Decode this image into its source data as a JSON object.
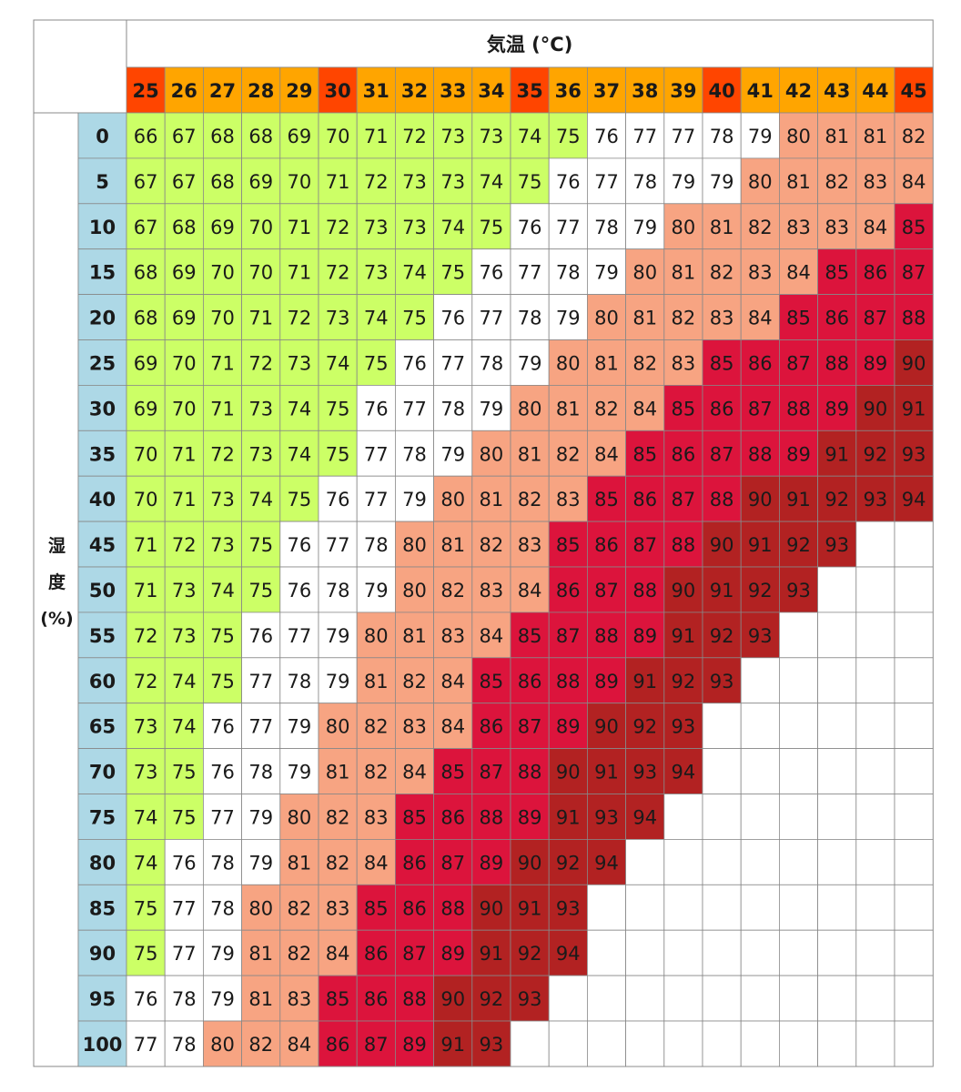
{
  "chart_data": {
    "type": "heatmap",
    "xlabel": "気温 (°C)",
    "ylabel": "湿度(%)",
    "x": [
      25,
      26,
      27,
      28,
      29,
      30,
      31,
      32,
      33,
      34,
      35,
      36,
      37,
      38,
      39,
      40,
      41,
      42,
      43,
      44,
      45
    ],
    "y": [
      0,
      5,
      10,
      15,
      20,
      25,
      30,
      35,
      40,
      45,
      50,
      55,
      60,
      65,
      70,
      75,
      80,
      85,
      90,
      95,
      100
    ],
    "values": [
      [
        66,
        67,
        68,
        68,
        69,
        70,
        71,
        72,
        73,
        73,
        74,
        75,
        76,
        77,
        77,
        78,
        79,
        80,
        81,
        81,
        82
      ],
      [
        67,
        67,
        68,
        69,
        70,
        71,
        72,
        73,
        73,
        74,
        75,
        76,
        77,
        78,
        79,
        79,
        80,
        81,
        82,
        83,
        84
      ],
      [
        67,
        68,
        69,
        70,
        71,
        72,
        73,
        73,
        74,
        75,
        76,
        77,
        78,
        79,
        80,
        81,
        82,
        83,
        83,
        84,
        85
      ],
      [
        68,
        69,
        70,
        70,
        71,
        72,
        73,
        74,
        75,
        76,
        77,
        78,
        79,
        80,
        81,
        82,
        83,
        84,
        85,
        86,
        87
      ],
      [
        68,
        69,
        70,
        71,
        72,
        73,
        74,
        75,
        76,
        77,
        78,
        79,
        80,
        81,
        82,
        83,
        84,
        85,
        86,
        87,
        88
      ],
      [
        69,
        70,
        71,
        72,
        73,
        74,
        75,
        76,
        77,
        78,
        79,
        80,
        81,
        82,
        83,
        85,
        86,
        87,
        88,
        89,
        90
      ],
      [
        69,
        70,
        71,
        73,
        74,
        75,
        76,
        77,
        78,
        79,
        80,
        81,
        82,
        84,
        85,
        86,
        87,
        88,
        89,
        90,
        91
      ],
      [
        70,
        71,
        72,
        73,
        74,
        75,
        77,
        78,
        79,
        80,
        81,
        82,
        84,
        85,
        86,
        87,
        88,
        89,
        91,
        92,
        93
      ],
      [
        70,
        71,
        73,
        74,
        75,
        76,
        77,
        79,
        80,
        81,
        82,
        83,
        85,
        86,
        87,
        88,
        90,
        91,
        92,
        93,
        94
      ],
      [
        71,
        72,
        73,
        75,
        76,
        77,
        78,
        80,
        81,
        82,
        83,
        85,
        86,
        87,
        88,
        90,
        91,
        92,
        93
      ],
      [
        71,
        73,
        74,
        75,
        76,
        78,
        79,
        80,
        82,
        83,
        84,
        86,
        87,
        88,
        90,
        91,
        92,
        93
      ],
      [
        72,
        73,
        75,
        76,
        77,
        79,
        80,
        81,
        83,
        84,
        85,
        87,
        88,
        89,
        91,
        92,
        93
      ],
      [
        72,
        74,
        75,
        77,
        78,
        79,
        81,
        82,
        84,
        85,
        86,
        88,
        89,
        91,
        92,
        93
      ],
      [
        73,
        74,
        76,
        77,
        79,
        80,
        82,
        83,
        84,
        86,
        87,
        89,
        90,
        92,
        93
      ],
      [
        73,
        75,
        76,
        78,
        79,
        81,
        82,
        84,
        85,
        87,
        88,
        90,
        91,
        93,
        94
      ],
      [
        74,
        75,
        77,
        79,
        80,
        82,
        83,
        85,
        86,
        88,
        89,
        91,
        93,
        94
      ],
      [
        74,
        76,
        78,
        79,
        81,
        82,
        84,
        86,
        87,
        89,
        90,
        92,
        94
      ],
      [
        75,
        77,
        78,
        80,
        82,
        83,
        85,
        86,
        88,
        90,
        91,
        93
      ],
      [
        75,
        77,
        79,
        81,
        82,
        84,
        86,
        87,
        89,
        91,
        92,
        94
      ],
      [
        76,
        78,
        79,
        81,
        83,
        85,
        86,
        88,
        90,
        92,
        93
      ],
      [
        77,
        78,
        80,
        82,
        84,
        86,
        87,
        89,
        91,
        93
      ]
    ],
    "colors": {
      "green": "#ccff66",
      "white": "#ffffff",
      "salmon": "#f7a482",
      "red": "#dc143c",
      "darkred": "#b22222",
      "header_orange": "#ffa500",
      "header_red": "#ff4500",
      "humidity_blue": "#add8e6",
      "grid": "#888888"
    }
  }
}
